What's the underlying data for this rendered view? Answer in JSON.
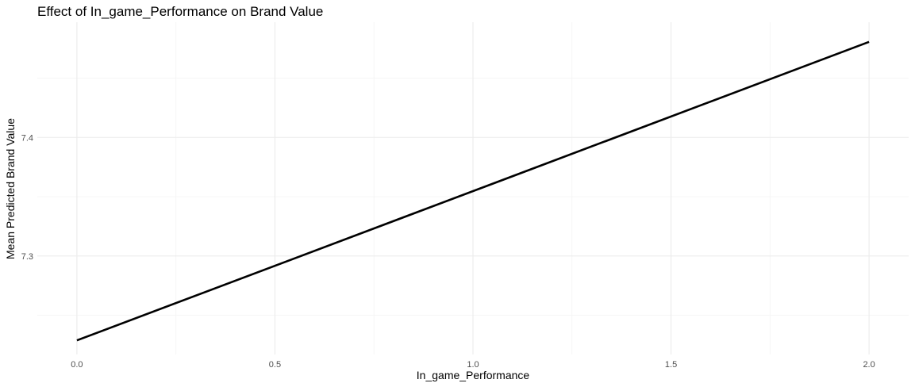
{
  "chart_data": {
    "type": "line",
    "title": "Effect of In_game_Performance on Brand Value",
    "xlabel": "In_game_Performance",
    "ylabel": "Mean Predicted Brand Value",
    "xlim": [
      -0.1,
      2.1
    ],
    "ylim": [
      7.217,
      7.4971
    ],
    "x_major_ticks": [
      0.0,
      0.5,
      1.0,
      1.5,
      2.0
    ],
    "x_tick_labels": [
      "0.0",
      "0.5",
      "1.0",
      "1.5",
      "2.0"
    ],
    "x_minor_ticks": [
      0.25,
      0.75,
      1.25,
      1.75
    ],
    "y_major_ticks": [
      7.3,
      7.4
    ],
    "y_tick_labels": [
      "7.3",
      "7.4"
    ],
    "y_minor_ticks": [
      7.25,
      7.35,
      7.45
    ],
    "grid": true,
    "legend": "none",
    "series": [
      {
        "x": [
          0.0,
          2.0
        ],
        "values": [
          7.2289,
          7.4805
        ],
        "color": "#000000"
      }
    ]
  }
}
